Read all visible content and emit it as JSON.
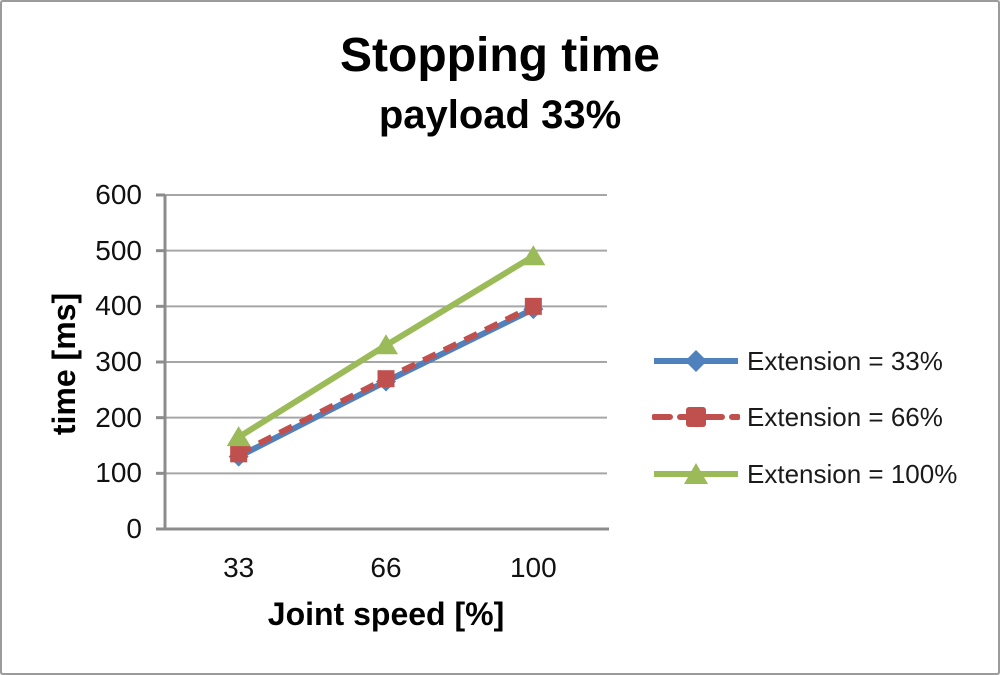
{
  "chart_data": {
    "type": "line",
    "title": "Stopping time",
    "subtitle": "payload 33%",
    "xlabel": "Joint speed [%]",
    "ylabel": "time [ms]",
    "categories": [
      33,
      66,
      100
    ],
    "x_tick_labels": [
      "33",
      "66",
      "100"
    ],
    "y_ticks": [
      0,
      100,
      200,
      300,
      400,
      500,
      600
    ],
    "ylim": [
      0,
      600
    ],
    "grid": "horizontal-only",
    "legend_position": "right",
    "series": [
      {
        "name": "Extension = 33%",
        "values": [
          130,
          265,
          395
        ],
        "color": "#4f81bd",
        "marker": "diamond",
        "line_style": "solid"
      },
      {
        "name": "Extension = 66%",
        "values": [
          135,
          270,
          400
        ],
        "color": "#c0504d",
        "marker": "square",
        "line_style": "dashed"
      },
      {
        "name": "Extension = 100%",
        "values": [
          165,
          330,
          490
        ],
        "color": "#9bbb59",
        "marker": "triangle",
        "line_style": "solid"
      }
    ],
    "colors": {
      "gridline": "#a6a6a6",
      "axis": "#8c8c8c",
      "text": "#000000"
    }
  }
}
